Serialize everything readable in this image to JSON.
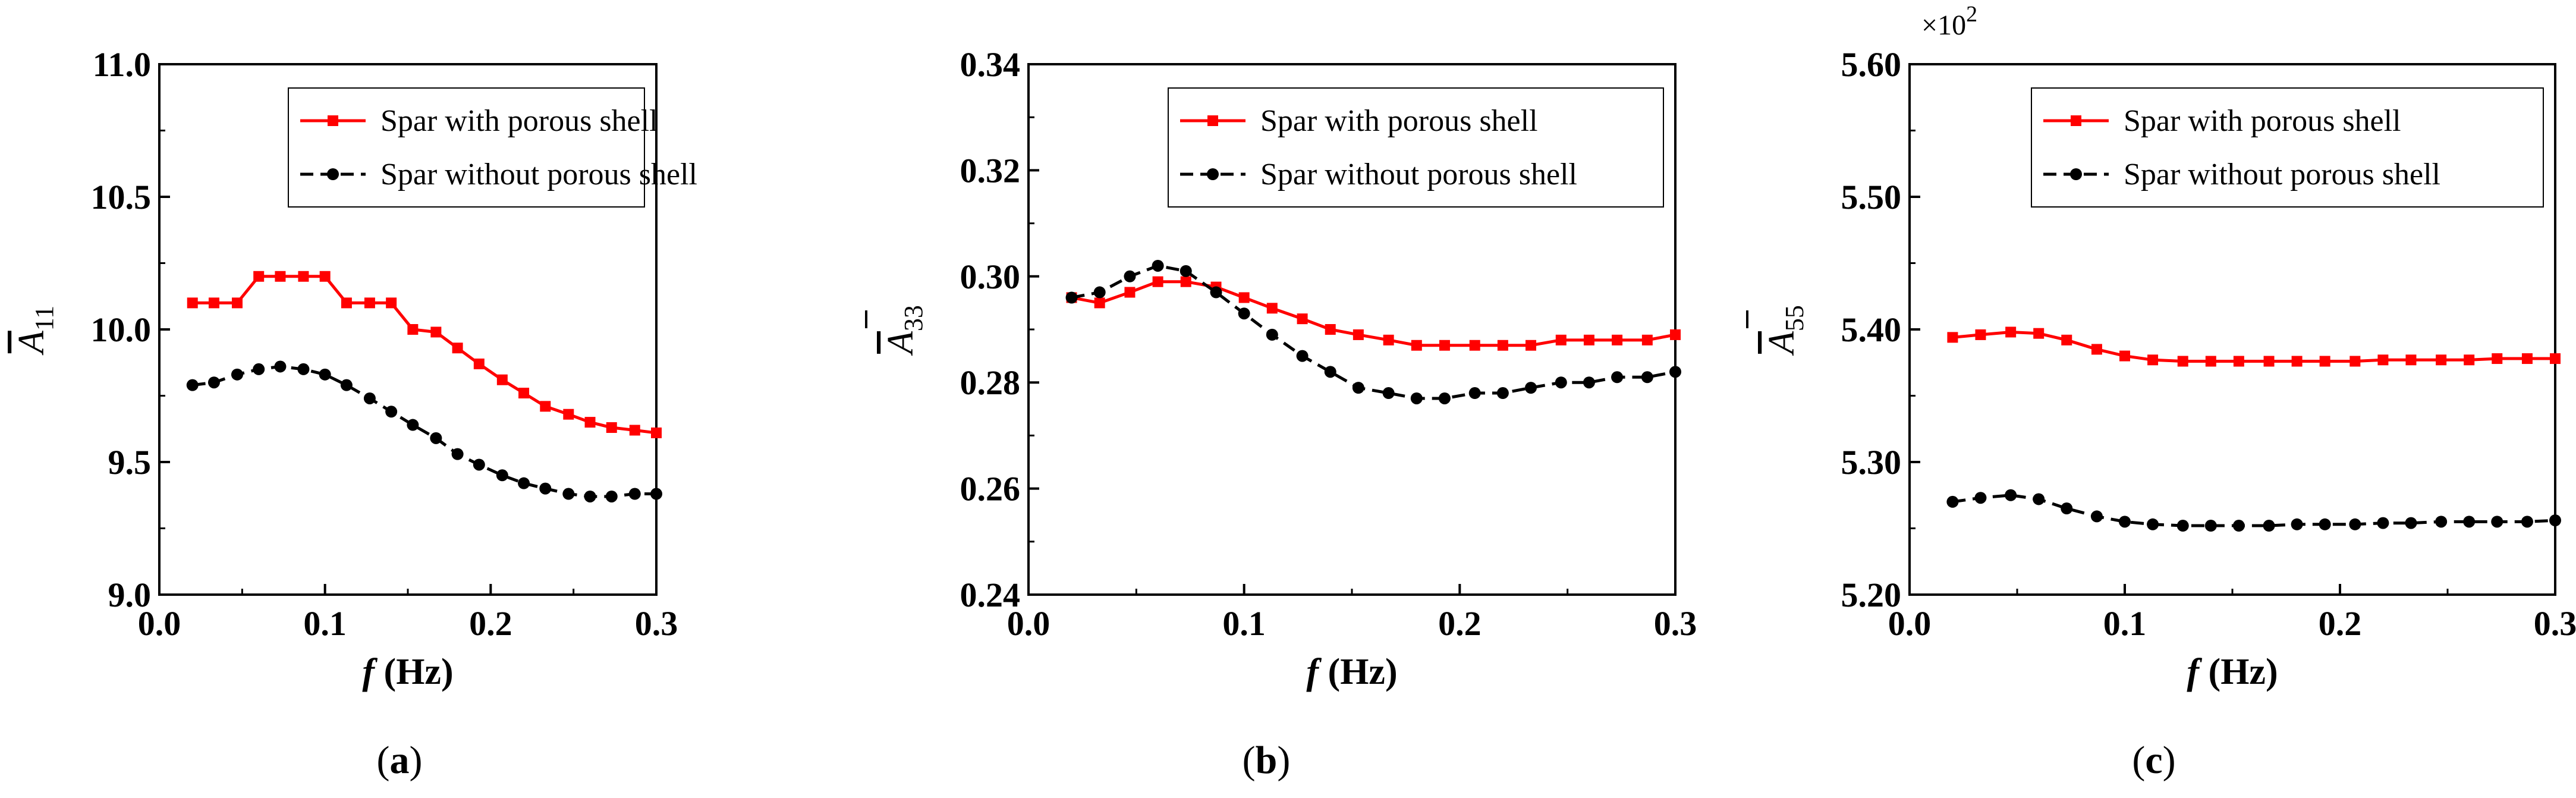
{
  "chart_data": [
    {
      "type": "line",
      "panel_label": "a",
      "xlabel_italic": "f",
      "xlabel_rest": " (Hz)",
      "ylabel_main": "A",
      "ylabel_sub": "11",
      "xlim": [
        0.0,
        0.3
      ],
      "ylim": [
        9.0,
        11.0
      ],
      "xticks": [
        "0.0",
        "0.1",
        "0.2",
        "0.3"
      ],
      "yticks": [
        "9.0",
        "9.5",
        "10.0",
        "10.5",
        "11.0"
      ],
      "multiplier_base": "",
      "multiplier_exp": "",
      "x": [
        0.02,
        0.033,
        0.047,
        0.06,
        0.073,
        0.087,
        0.1,
        0.113,
        0.127,
        0.14,
        0.153,
        0.167,
        0.18,
        0.193,
        0.207,
        0.22,
        0.233,
        0.247,
        0.26,
        0.273,
        0.287,
        0.3
      ],
      "series": [
        {
          "name": "Spar with porous shell",
          "color": "#ff0000",
          "marker": "square",
          "dash": "solid",
          "values": [
            10.1,
            10.1,
            10.1,
            10.2,
            10.2,
            10.2,
            10.2,
            10.1,
            10.1,
            10.1,
            10.0,
            9.99,
            9.93,
            9.87,
            9.81,
            9.76,
            9.71,
            9.68,
            9.65,
            9.63,
            9.62,
            9.61
          ]
        },
        {
          "name": "Spar without porous shell",
          "color": "#000000",
          "marker": "circle",
          "dash": "dashed",
          "values": [
            9.79,
            9.8,
            9.83,
            9.85,
            9.86,
            9.85,
            9.83,
            9.79,
            9.74,
            9.69,
            9.64,
            9.59,
            9.53,
            9.49,
            9.45,
            9.42,
            9.4,
            9.38,
            9.37,
            9.37,
            9.38,
            9.38
          ]
        }
      ]
    },
    {
      "type": "line",
      "panel_label": "b",
      "xlabel_italic": "f",
      "xlabel_rest": " (Hz)",
      "ylabel_main": "A",
      "ylabel_sub": "33",
      "xlim": [
        0.0,
        0.3
      ],
      "ylim": [
        0.24,
        0.34
      ],
      "xticks": [
        "0.0",
        "0.1",
        "0.2",
        "0.3"
      ],
      "yticks": [
        "0.24",
        "0.26",
        "0.28",
        "0.30",
        "0.32",
        "0.34"
      ],
      "multiplier_base": "",
      "multiplier_exp": "",
      "x": [
        0.02,
        0.033,
        0.047,
        0.06,
        0.073,
        0.087,
        0.1,
        0.113,
        0.127,
        0.14,
        0.153,
        0.167,
        0.18,
        0.193,
        0.207,
        0.22,
        0.233,
        0.247,
        0.26,
        0.273,
        0.287,
        0.3
      ],
      "series": [
        {
          "name": "Spar with porous shell",
          "color": "#ff0000",
          "marker": "square",
          "dash": "solid",
          "values": [
            0.296,
            0.295,
            0.297,
            0.299,
            0.299,
            0.298,
            0.296,
            0.294,
            0.292,
            0.29,
            0.289,
            0.288,
            0.287,
            0.287,
            0.287,
            0.287,
            0.287,
            0.288,
            0.288,
            0.288,
            0.288,
            0.289
          ]
        },
        {
          "name": "Spar without porous shell",
          "color": "#000000",
          "marker": "circle",
          "dash": "dashed",
          "values": [
            0.296,
            0.297,
            0.3,
            0.302,
            0.301,
            0.297,
            0.293,
            0.289,
            0.285,
            0.282,
            0.279,
            0.278,
            0.277,
            0.277,
            0.278,
            0.278,
            0.279,
            0.28,
            0.28,
            0.281,
            0.281,
            0.282
          ]
        }
      ]
    },
    {
      "type": "line",
      "panel_label": "c",
      "xlabel_italic": "f",
      "xlabel_rest": " (Hz)",
      "ylabel_main": "A",
      "ylabel_sub": "55",
      "xlim": [
        0.0,
        0.3
      ],
      "ylim": [
        5.2,
        5.6
      ],
      "xticks": [
        "0.0",
        "0.1",
        "0.2",
        "0.3"
      ],
      "yticks": [
        "5.20",
        "5.30",
        "5.40",
        "5.50",
        "5.60"
      ],
      "multiplier_base": "×10",
      "multiplier_exp": "2",
      "x": [
        0.02,
        0.033,
        0.047,
        0.06,
        0.073,
        0.087,
        0.1,
        0.113,
        0.127,
        0.14,
        0.153,
        0.167,
        0.18,
        0.193,
        0.207,
        0.22,
        0.233,
        0.247,
        0.26,
        0.273,
        0.287,
        0.3
      ],
      "series": [
        {
          "name": "Spar with porous shell",
          "color": "#ff0000",
          "marker": "square",
          "dash": "solid",
          "values": [
            5.394,
            5.396,
            5.398,
            5.397,
            5.392,
            5.385,
            5.38,
            5.377,
            5.376,
            5.376,
            5.376,
            5.376,
            5.376,
            5.376,
            5.376,
            5.377,
            5.377,
            5.377,
            5.377,
            5.378,
            5.378,
            5.378
          ]
        },
        {
          "name": "Spar without porous shell",
          "color": "#000000",
          "marker": "circle",
          "dash": "dashed",
          "values": [
            5.27,
            5.273,
            5.275,
            5.272,
            5.265,
            5.259,
            5.255,
            5.253,
            5.252,
            5.252,
            5.252,
            5.252,
            5.253,
            5.253,
            5.253,
            5.254,
            5.254,
            5.255,
            5.255,
            5.255,
            5.255,
            5.256
          ]
        }
      ]
    }
  ]
}
